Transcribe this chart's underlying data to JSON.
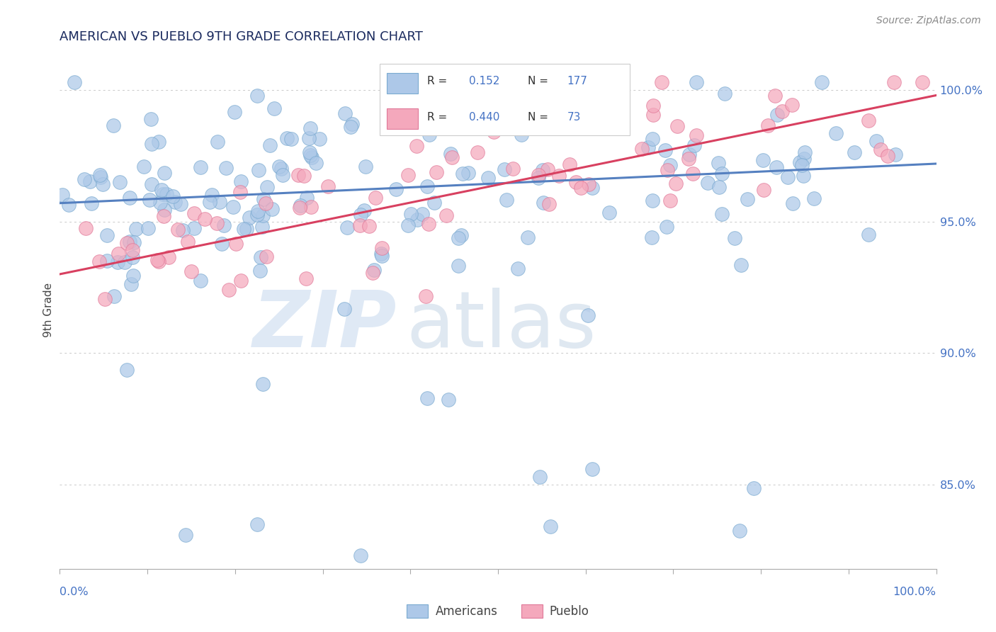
{
  "title": "AMERICAN VS PUEBLO 9TH GRADE CORRELATION CHART",
  "source": "Source: ZipAtlas.com",
  "ylabel": "9th Grade",
  "xlim": [
    0.0,
    1.0
  ],
  "ylim": [
    0.818,
    1.015
  ],
  "ytick_values": [
    0.85,
    0.9,
    0.95,
    1.0
  ],
  "ytick_labels": [
    "85.0%",
    "90.0%",
    "95.0%",
    "100.0%"
  ],
  "legend_r_american": "0.152",
  "legend_n_american": "177",
  "legend_r_pueblo": "0.440",
  "legend_n_pueblo": "73",
  "american_color": "#adc8e8",
  "american_edge_color": "#7aaad0",
  "pueblo_color": "#f4a8bc",
  "pueblo_edge_color": "#e07898",
  "american_line_color": "#5580c0",
  "pueblo_line_color": "#d84060",
  "title_color": "#1a2a5e",
  "tick_color": "#4472c4",
  "grid_color": "#bbbbbb",
  "watermark_zip_color": "#c5d8ee",
  "watermark_atlas_color": "#b8cce0",
  "am_line_y0": 0.957,
  "am_line_y1": 0.972,
  "pu_line_y0": 0.93,
  "pu_line_y1": 0.998
}
